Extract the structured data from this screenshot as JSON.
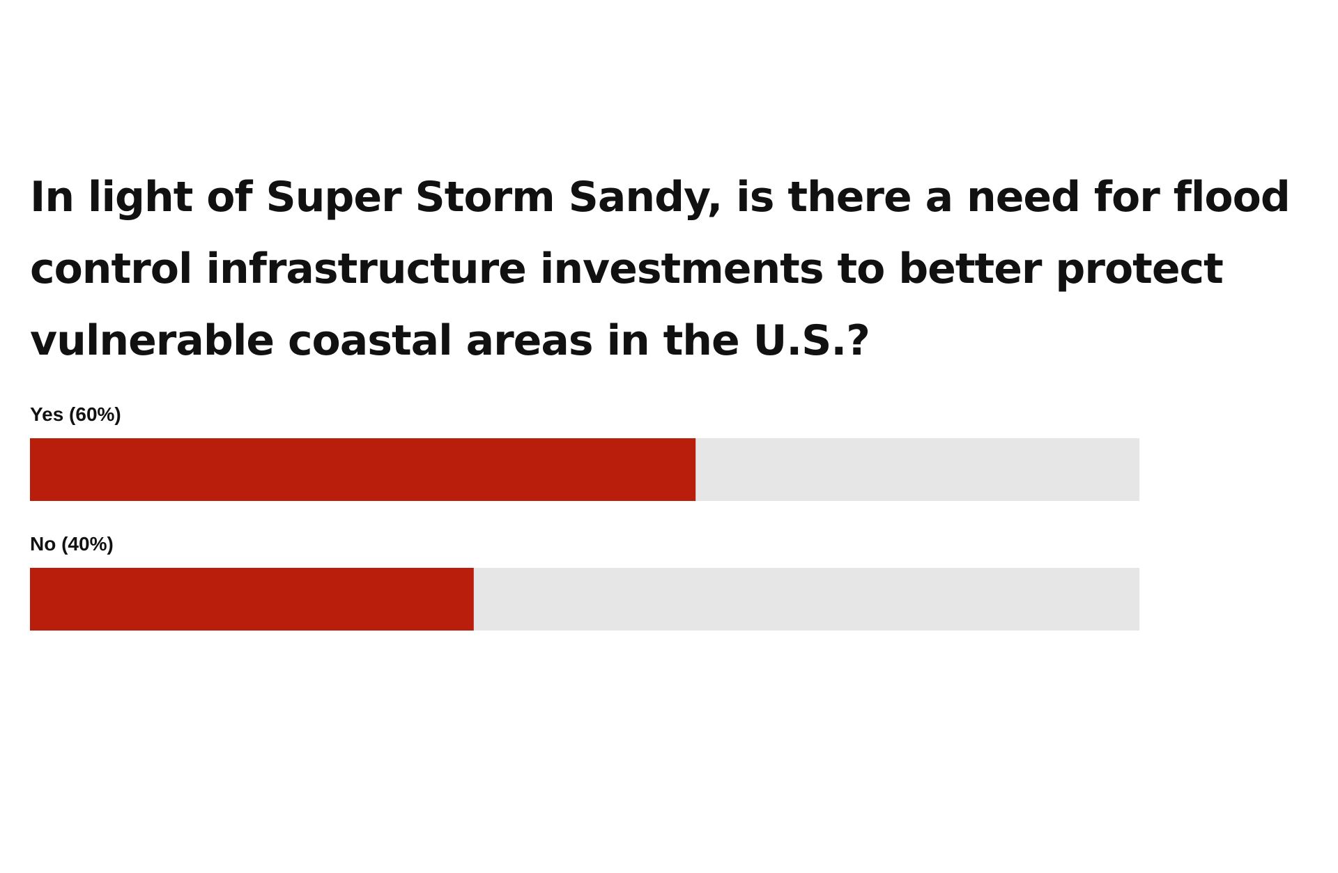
{
  "chart_data": {
    "type": "bar",
    "orientation": "horizontal",
    "title": "In light of Super Storm Sandy, is there a need for flood control infrastructure investments to better protect vulnerable coastal areas in the U.S.?",
    "categories": [
      "Yes (60%)",
      "No (40%)"
    ],
    "values": [
      60,
      40
    ],
    "color": "#b91d0b",
    "track_color": "#e6e6e6",
    "xlim": [
      0,
      100
    ]
  }
}
